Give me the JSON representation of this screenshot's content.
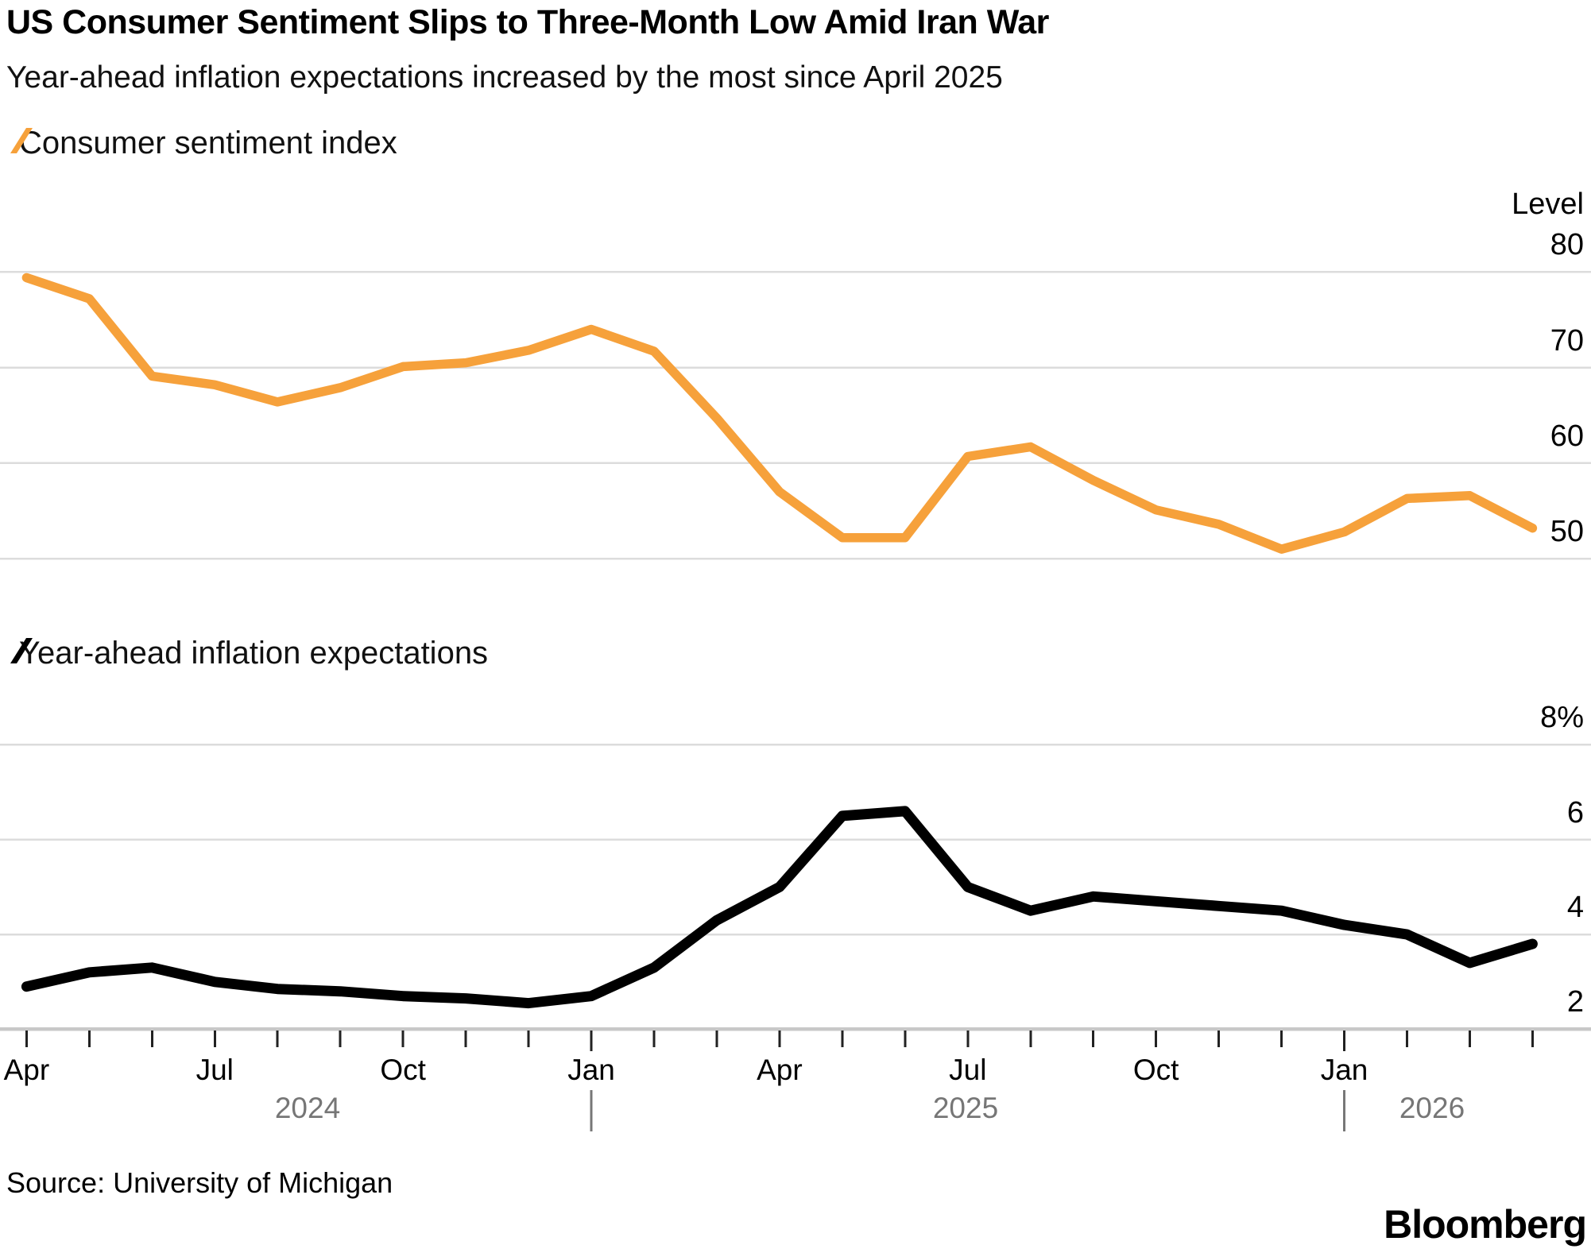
{
  "header": {
    "title": "US Consumer Sentiment Slips to Three-Month Low Amid Iran War",
    "subtitle": "Year-ahead inflation expectations increased by the most since April 2025"
  },
  "source_line": "Source: University of Michigan",
  "brand": "Bloomberg",
  "x_axis": {
    "month_tick_labels": [
      {
        "month_index": 0,
        "label": "Apr"
      },
      {
        "month_index": 3,
        "label": "Jul"
      },
      {
        "month_index": 6,
        "label": "Oct"
      },
      {
        "month_index": 9,
        "label": "Jan"
      },
      {
        "month_index": 12,
        "label": "Apr"
      },
      {
        "month_index": 15,
        "label": "Jul"
      },
      {
        "month_index": 18,
        "label": "Oct"
      },
      {
        "month_index": 21,
        "label": "Jan"
      }
    ],
    "year_labels": [
      "2024",
      "2025",
      "2026"
    ]
  },
  "chart_data": [
    {
      "type": "line",
      "title": "Consumer sentiment index",
      "unit_label": "Level",
      "color": "#F6A13B",
      "legend_position": "top-left",
      "grid": true,
      "y_ticks": [
        "80",
        "70",
        "60",
        "50"
      ],
      "y_tick_values": [
        80,
        70,
        60,
        50
      ],
      "ylim": [
        45,
        86
      ],
      "categories": [
        "Apr 2024",
        "May 2024",
        "Jun 2024",
        "Jul 2024",
        "Aug 2024",
        "Sep 2024",
        "Oct 2024",
        "Nov 2024",
        "Dec 2024",
        "Jan 2025",
        "Feb 2025",
        "Mar 2025",
        "Apr 2025",
        "May 2025",
        "Jun 2025",
        "Jul 2025",
        "Aug 2025",
        "Sep 2025",
        "Oct 2025",
        "Nov 2025",
        "Dec 2025",
        "Jan 2026",
        "Feb 2026",
        "Mar 2026",
        "Apr 2026"
      ],
      "values": [
        79.4,
        77.2,
        69.1,
        68.2,
        66.4,
        67.9,
        70.1,
        70.5,
        71.8,
        74.0,
        71.7,
        64.7,
        57.0,
        52.2,
        52.2,
        60.7,
        61.7,
        58.2,
        55.1,
        53.6,
        51.0,
        52.8,
        56.3,
        56.6,
        53.2
      ]
    },
    {
      "type": "line",
      "title": "Year-ahead inflation expectations",
      "unit_label": "",
      "color": "#000000",
      "legend_position": "top-left",
      "grid": true,
      "y_ticks": [
        "8%",
        "6",
        "4",
        "2"
      ],
      "y_tick_values": [
        8,
        6,
        4,
        2
      ],
      "ylim": [
        2,
        9
      ],
      "categories": [
        "Apr 2024",
        "May 2024",
        "Jun 2024",
        "Jul 2024",
        "Aug 2024",
        "Sep 2024",
        "Oct 2024",
        "Nov 2024",
        "Dec 2024",
        "Jan 2025",
        "Feb 2025",
        "Mar 2025",
        "Apr 2025",
        "May 2025",
        "Jun 2025",
        "Jul 2025",
        "Aug 2025",
        "Sep 2025",
        "Oct 2025",
        "Nov 2025",
        "Dec 2025",
        "Jan 2026",
        "Feb 2026",
        "Mar 2026",
        "Apr 2026"
      ],
      "values": [
        2.9,
        3.2,
        3.3,
        3.0,
        2.85,
        2.8,
        2.7,
        2.65,
        2.55,
        2.7,
        3.3,
        4.3,
        5.0,
        6.5,
        6.6,
        5.0,
        4.5,
        4.8,
        4.7,
        4.6,
        4.5,
        4.2,
        4.0,
        3.4,
        3.8
      ]
    }
  ]
}
